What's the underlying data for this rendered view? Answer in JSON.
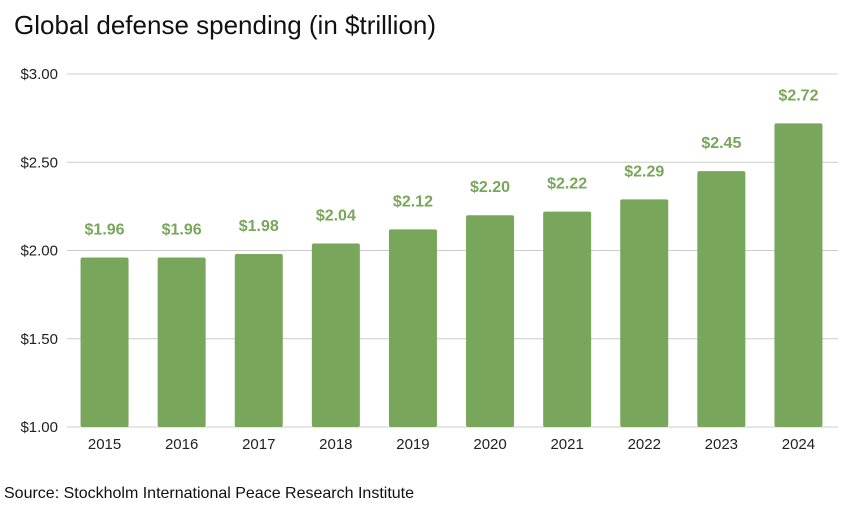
{
  "chart_data": {
    "type": "bar",
    "title": "Global defense spending (in $trillion)",
    "source": "Source: Stockholm International Peace Research Institute",
    "xlabel": "",
    "ylabel": "",
    "categories": [
      "2015",
      "2016",
      "2017",
      "2018",
      "2019",
      "2020",
      "2021",
      "2022",
      "2023",
      "2024"
    ],
    "values": [
      1.96,
      1.96,
      1.98,
      2.04,
      2.12,
      2.2,
      2.22,
      2.29,
      2.45,
      2.72
    ],
    "data_labels": [
      "$1.96",
      "$1.96",
      "$1.98",
      "$2.04",
      "$2.12",
      "$2.20",
      "$2.22",
      "$2.29",
      "$2.45",
      "$2.72"
    ],
    "ylim": [
      1.0,
      3.0
    ],
    "yticks": [
      1.0,
      1.5,
      2.0,
      2.5,
      3.0
    ],
    "ytick_labels": [
      "$1.00",
      "$1.50",
      "$2.00",
      "$2.50",
      "$3.00"
    ],
    "grid": true,
    "legend": "none",
    "bar_color": "#78a65a",
    "label_color": "#78a65a",
    "grid_color": "#cccccc"
  }
}
